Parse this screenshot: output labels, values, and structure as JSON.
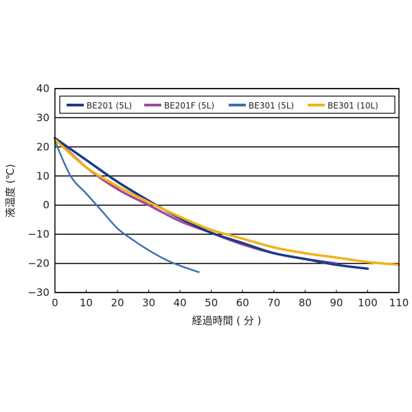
{
  "chart_data": {
    "type": "line",
    "title": "",
    "xlabel": "経過時間 ( 分 )",
    "ylabel": "液温度 (℃)",
    "xlim": [
      0,
      110
    ],
    "ylim": [
      -30,
      40
    ],
    "xticks": [
      0,
      10,
      20,
      30,
      40,
      50,
      60,
      70,
      80,
      90,
      100,
      110
    ],
    "yticks": [
      40,
      30,
      20,
      10,
      0,
      -10,
      -20,
      -30
    ],
    "grid": "horizontal",
    "legend_position": "top",
    "series": [
      {
        "name": "BE201 (5L)",
        "color": "#1b3a8c",
        "x": [
          0,
          10,
          20,
          30,
          40,
          50,
          60,
          70,
          80,
          90,
          100
        ],
        "y": [
          23,
          15.5,
          8,
          1.5,
          -4.5,
          -9.5,
          -13,
          -16.5,
          -18.5,
          -20.5,
          -21.8
        ]
      },
      {
        "name": "BE201F (5L)",
        "color": "#a24a9a",
        "x": [
          0,
          10,
          20,
          30,
          40,
          50,
          60,
          70,
          80,
          90
        ],
        "y": [
          23,
          13,
          5.5,
          0,
          -5.5,
          -9.5,
          -13.5,
          -16.5,
          -18.5,
          -20
        ]
      },
      {
        "name": "BE301 (5L)",
        "color": "#3f6fae",
        "x": [
          0,
          5,
          10,
          15,
          20,
          25,
          30,
          35,
          40,
          46
        ],
        "y": [
          22,
          10,
          4,
          -2,
          -8,
          -12,
          -15.5,
          -18.5,
          -20.8,
          -23
        ]
      },
      {
        "name": "BE301 (10L)",
        "color": "#f0b31a",
        "x": [
          0,
          10,
          20,
          30,
          40,
          50,
          60,
          70,
          80,
          90,
          100,
          110
        ],
        "y": [
          22.5,
          13,
          6.5,
          1,
          -4,
          -8.5,
          -11.5,
          -14.5,
          -16.5,
          -18,
          -19.5,
          -20.5
        ]
      }
    ]
  }
}
